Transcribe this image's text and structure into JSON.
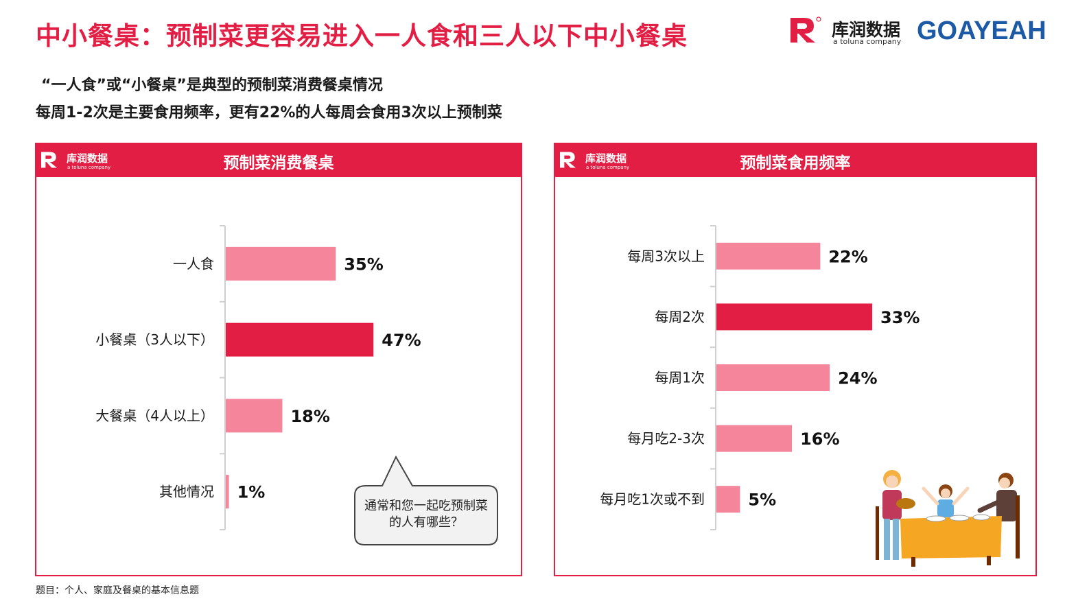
{
  "header": {
    "title": "中小餐桌：预制菜更容易进入一人食和三人以下中小餐桌",
    "brand_cn": "库润数据",
    "brand_en": "a toluna company",
    "partner": "GOAYEAH"
  },
  "subtitles": [
    "“一人食”或“小餐桌”是典型的预制菜消费餐桌情况",
    "每周1-2次是主要食用频率，更有22%的人每周会食用3次以上预制菜"
  ],
  "colors": {
    "accent": "#e31e44",
    "bar_light": "#f4859a",
    "bar_highlight": "#e31e44"
  },
  "left_panel": {
    "title": "预制菜消费餐桌",
    "logo_cn": "库润数据",
    "logo_en": "a toluna company"
  },
  "right_panel": {
    "title": "预制菜食用频率",
    "logo_cn": "库润数据",
    "logo_en": "a toluna company"
  },
  "bubble": {
    "text": "通常和您一起吃预制菜的人有哪些？"
  },
  "illustration": {
    "icon": "family-dining-table-illustration"
  },
  "source": "题目：个人、家庭及餐桌的基本信息题",
  "chart_data": [
    {
      "type": "bar",
      "orientation": "horizontal",
      "title": "预制菜消费餐桌",
      "categories": [
        "一人食",
        "小餐桌（3人以下）",
        "大餐桌（4人以上）",
        "其他情况"
      ],
      "values": [
        35,
        47,
        18,
        1
      ],
      "value_labels": [
        "35%",
        "47%",
        "18%",
        "1%"
      ],
      "highlight_index": 1,
      "xlim": [
        0,
        100
      ],
      "grid": false
    },
    {
      "type": "bar",
      "orientation": "horizontal",
      "title": "预制菜食用频率",
      "categories": [
        "每周3次以上",
        "每周2次",
        "每周1次",
        "每月吃2-3次",
        "每月吃1次或不到"
      ],
      "values": [
        22,
        33,
        24,
        16,
        5
      ],
      "value_labels": [
        "22%",
        "33%",
        "24%",
        "16%",
        "5%"
      ],
      "highlight_index": 1,
      "xlim": [
        0,
        100
      ],
      "grid": false
    }
  ]
}
